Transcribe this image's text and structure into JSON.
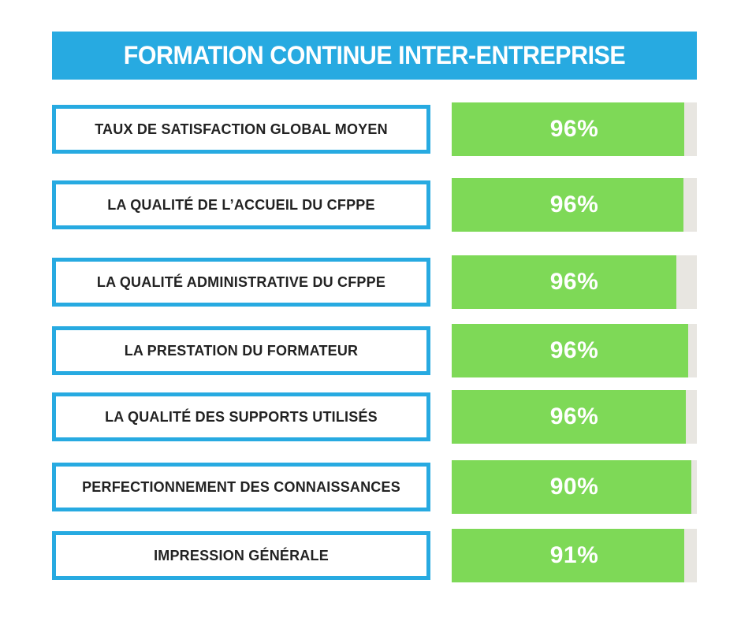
{
  "title": "FORMATION CONTINUE INTER-ENTREPRISE",
  "colors": {
    "header_bg": "#27AAE1",
    "box_border": "#27AAE1",
    "bar_fill_green": "#7ED957",
    "bar_track_gray": "#E8E6E1",
    "label_text": "#222222",
    "light_text": "#FFFFFF",
    "background": "#FFFFFF"
  },
  "chart_data": {
    "type": "bar",
    "orientation": "horizontal",
    "title": "FORMATION CONTINUE INTER-ENTREPRISE",
    "xlabel": "",
    "ylabel": "",
    "legend": "none",
    "grid": false,
    "value_range": [
      0,
      100
    ],
    "categories": [
      "TAUX DE SATISFACTION GLOBAL MOYEN",
      "LA QUALITÉ DE L’ACCUEIL DU CFPPE",
      "LA QUALITÉ ADMINISTRATIVE DU CFPPE",
      "LA PRESTATION DU FORMATEUR",
      "LA QUALITÉ DES SUPPORTS UTILISÉS",
      "PERFECTIONNEMENT DES CONNAISSANCES",
      "IMPRESSION GÉNÉRALE"
    ],
    "values": [
      96,
      96,
      96,
      96,
      96,
      90,
      91
    ],
    "value_labels": [
      "96%",
      "96%",
      "96%",
      "96%",
      "96%",
      "90%",
      "91%"
    ],
    "bar_fill_fractions": [
      0.95,
      0.945,
      0.915,
      0.965,
      0.955,
      0.978,
      0.95
    ]
  }
}
